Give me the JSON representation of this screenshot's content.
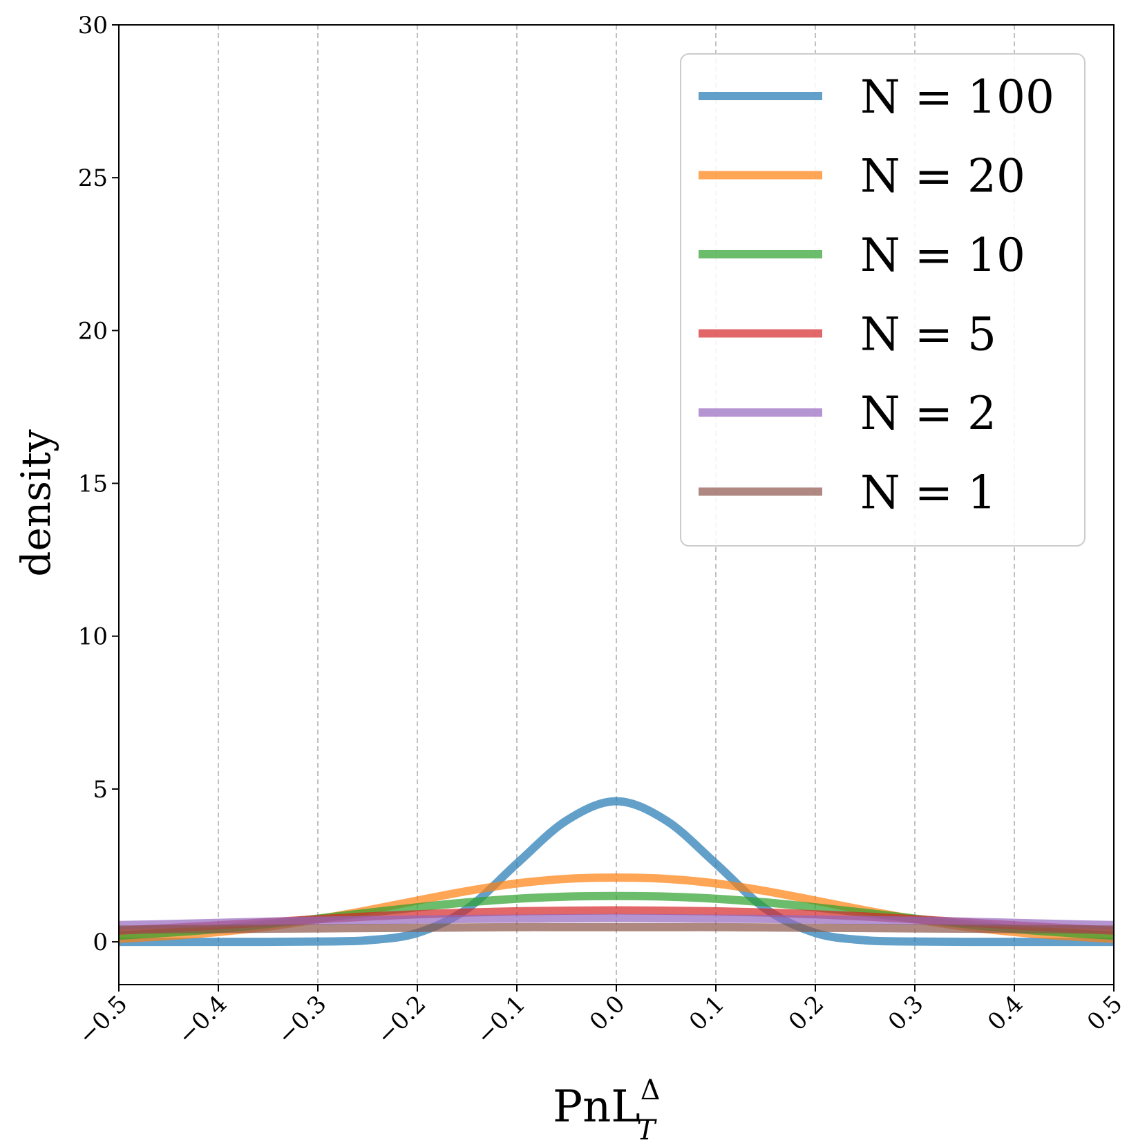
{
  "chart_data": {
    "type": "line",
    "title": "",
    "xlabel": "PnL",
    "xlabel_superscript": "Δ",
    "xlabel_subscript": "T",
    "ylabel": "density",
    "xlim": [
      -0.5,
      0.5
    ],
    "ylim": [
      -1.4,
      30
    ],
    "xticks": [
      -0.5,
      -0.4,
      -0.3,
      -0.2,
      -0.1,
      0.0,
      0.1,
      0.2,
      0.3,
      0.4,
      0.5
    ],
    "xtick_labels": [
      "−0.5",
      "−0.4",
      "−0.3",
      "−0.2",
      "−0.1",
      "0.0",
      "0.1",
      "0.2",
      "0.3",
      "0.4",
      "0.5"
    ],
    "yticks": [
      0,
      5,
      10,
      15,
      20,
      25,
      30
    ],
    "ytick_labels": [
      "0",
      "5",
      "10",
      "15",
      "20",
      "25",
      "30"
    ],
    "grid": "x-dashed",
    "legend_position": "top-right",
    "x": [
      -0.5,
      -0.45,
      -0.4,
      -0.35,
      -0.3,
      -0.25,
      -0.2,
      -0.15,
      -0.1,
      -0.05,
      0.0,
      0.05,
      0.1,
      0.15,
      0.2,
      0.25,
      0.3,
      0.35,
      0.4,
      0.45,
      0.5
    ],
    "series": [
      {
        "name": "N = 100",
        "color": "#1f77b4",
        "values": [
          0.0,
          0.0,
          0.0,
          0.0,
          0.01,
          0.05,
          0.29,
          1.08,
          2.56,
          3.97,
          4.6,
          3.97,
          2.56,
          1.08,
          0.29,
          0.05,
          0.01,
          0.0,
          0.0,
          0.0,
          0.0
        ]
      },
      {
        "name": "N = 20",
        "color": "#ff7f0e",
        "values": [
          0.1,
          0.19,
          0.32,
          0.5,
          0.74,
          1.03,
          1.35,
          1.66,
          1.91,
          2.06,
          2.1,
          2.06,
          1.91,
          1.66,
          1.35,
          1.03,
          0.74,
          0.5,
          0.32,
          0.19,
          0.1
        ]
      },
      {
        "name": "N = 10",
        "color": "#2ca02c",
        "values": [
          0.2,
          0.3,
          0.42,
          0.58,
          0.76,
          0.95,
          1.13,
          1.29,
          1.41,
          1.48,
          1.5,
          1.48,
          1.41,
          1.29,
          1.13,
          0.95,
          0.76,
          0.58,
          0.42,
          0.3,
          0.2
        ]
      },
      {
        "name": "N = 5",
        "color": "#d62728",
        "values": [
          0.37,
          0.45,
          0.54,
          0.64,
          0.74,
          0.83,
          0.9,
          0.96,
          1.0,
          1.02,
          1.03,
          1.02,
          1.0,
          0.96,
          0.9,
          0.83,
          0.74,
          0.64,
          0.54,
          0.45,
          0.37
        ]
      },
      {
        "name": "N = 2",
        "color": "#9467bd",
        "values": [
          0.55,
          0.58,
          0.62,
          0.66,
          0.69,
          0.71,
          0.73,
          0.75,
          0.76,
          0.77,
          0.78,
          0.77,
          0.76,
          0.75,
          0.73,
          0.71,
          0.69,
          0.66,
          0.62,
          0.58,
          0.55
        ]
      },
      {
        "name": "N = 1",
        "color": "#8c564b",
        "values": [
          0.4,
          0.41,
          0.42,
          0.43,
          0.44,
          0.45,
          0.46,
          0.47,
          0.48,
          0.48,
          0.48,
          0.48,
          0.48,
          0.47,
          0.46,
          0.45,
          0.44,
          0.43,
          0.42,
          0.41,
          0.4
        ]
      }
    ]
  }
}
